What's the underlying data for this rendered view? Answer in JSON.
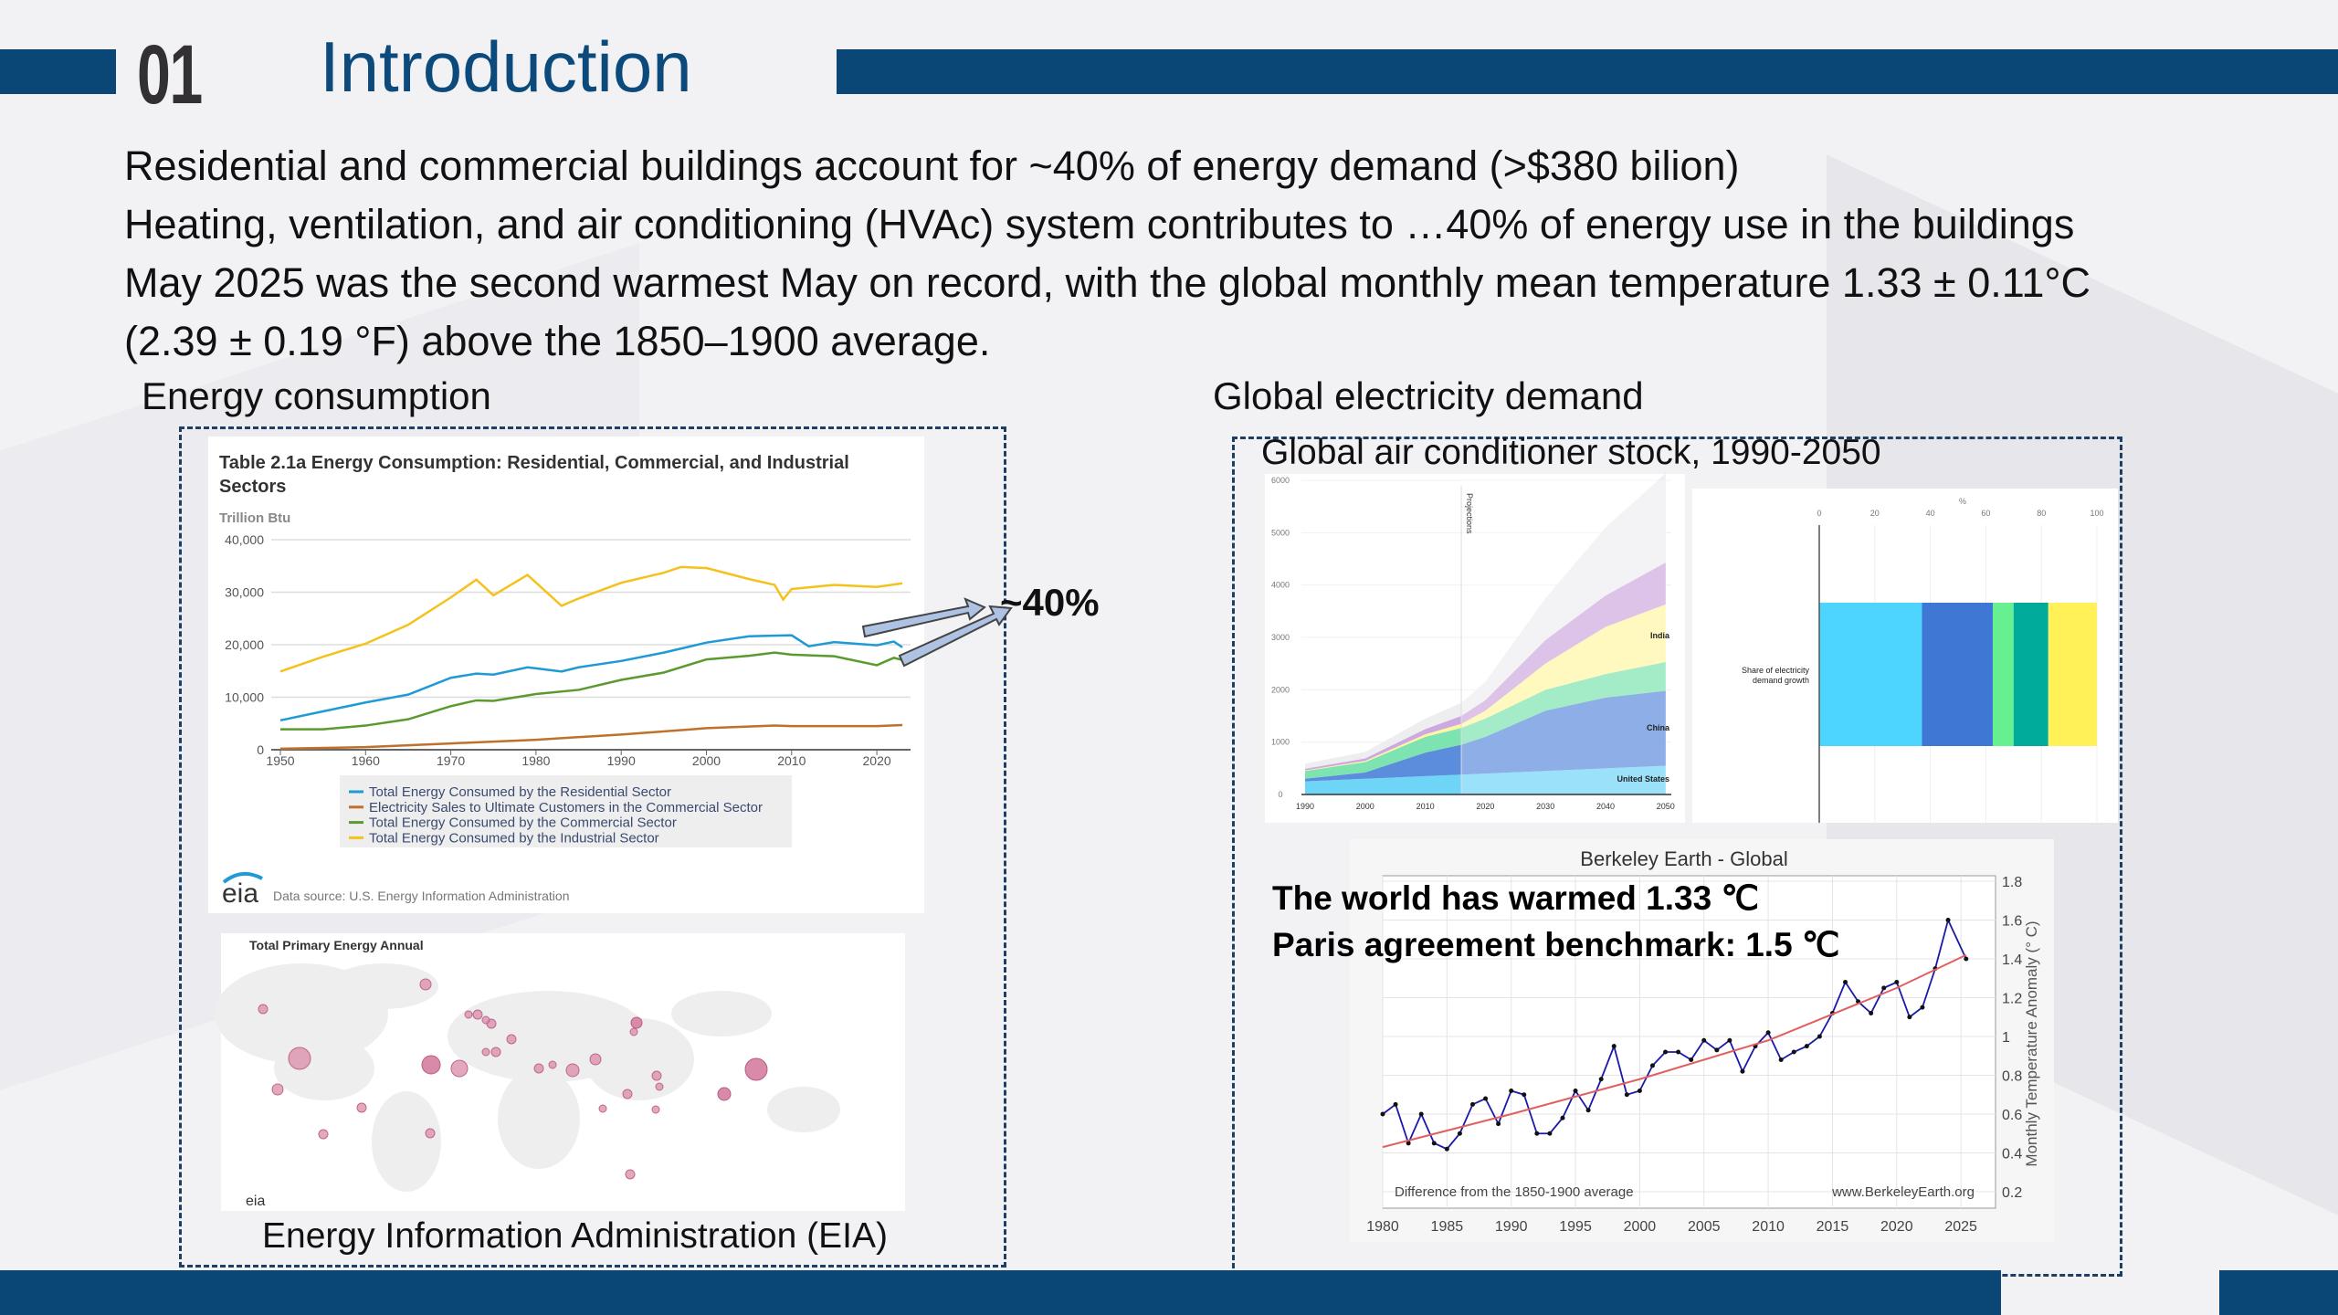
{
  "header": {
    "number": "01",
    "title": "Introduction",
    "bar_color": "#0a4776"
  },
  "body_lines": [
    "Residential and commercial buildings account for ~40% of energy demand (>$380 bilion)",
    "Heating, ventilation, and air conditioning (HVAc) system contributes to …40% of energy use in the buildings",
    "May 2025 was the second warmest May on record, with the global monthly mean temperature 1.33 ± 0.11°C",
    "(2.39 ± 0.19 °F) above the 1850–1900 average."
  ],
  "left_section": {
    "heading": "Energy consumption",
    "caption": "Energy Information Administration (EIA)",
    "callout": "~40%",
    "map_title": "Total Primary Energy Annual",
    "logo_text": "eia"
  },
  "right_section": {
    "heading": "Global electricity demand",
    "subheading": "Global air conditioner stock, 1990-2050",
    "overlay_line1": "The world has warmed 1.33 ℃",
    "overlay_line2": "Paris agreement benchmark: 1.5 ℃"
  },
  "chart_data": [
    {
      "type": "line",
      "title": "Table 2.1a Energy Consumption: Residential, Commercial, and Industrial Sectors",
      "title_line1": "Table 2.1a Energy Consumption: Residential, Commercial, and Industrial",
      "title_line2": "Sectors",
      "ylabel": "Trillion Btu",
      "source": "Data source: U.S. Energy Information Administration",
      "ylim": [
        0,
        40000
      ],
      "yticks": [
        "0",
        "10,000",
        "20,000",
        "30,000",
        "40,000"
      ],
      "xticks": [
        "1950",
        "1960",
        "1970",
        "1980",
        "1990",
        "2000",
        "2010",
        "2020"
      ],
      "grid": true,
      "legend": "bottom",
      "series": [
        {
          "name": "Total Energy Consumed by the Residential Sector",
          "color": "#1f9ad6",
          "x": [
            1950,
            1955,
            1960,
            1965,
            1970,
            1973,
            1975,
            1979,
            1980,
            1983,
            1985,
            1990,
            1995,
            2000,
            2005,
            2010,
            2012,
            2015,
            2020,
            2022,
            2023
          ],
          "y": [
            5600,
            7300,
            9000,
            10500,
            13700,
            14500,
            14300,
            15700,
            15500,
            14900,
            15700,
            16900,
            18500,
            20400,
            21600,
            21800,
            19700,
            20500,
            19900,
            20600,
            19500
          ]
        },
        {
          "name": "Electricity Sales to Ultimate Customers in the Commercial Sector",
          "color": "#c0702a",
          "x": [
            1950,
            1960,
            1970,
            1980,
            1990,
            2000,
            2008,
            2010,
            2020,
            2023
          ],
          "y": [
            200,
            500,
            1200,
            1900,
            2900,
            4100,
            4600,
            4500,
            4500,
            4700
          ]
        },
        {
          "name": "Total Energy Consumed by the Commercial Sector",
          "color": "#5a9a2e",
          "x": [
            1950,
            1955,
            1960,
            1965,
            1970,
            1973,
            1975,
            1980,
            1985,
            1990,
            1995,
            2000,
            2005,
            2008,
            2010,
            2015,
            2020,
            2022,
            2023
          ],
          "y": [
            3900,
            3900,
            4600,
            5800,
            8300,
            9400,
            9300,
            10600,
            11400,
            13300,
            14700,
            17200,
            17900,
            18500,
            18100,
            17800,
            16100,
            17500,
            17100
          ]
        },
        {
          "name": "Total Energy Consumed by the Industrial Sector",
          "color": "#f5c11c",
          "x": [
            1950,
            1955,
            1960,
            1965,
            1970,
            1973,
            1975,
            1979,
            1983,
            1985,
            1990,
            1995,
            1997,
            2000,
            2005,
            2008,
            2009,
            2010,
            2015,
            2020,
            2023
          ],
          "y": [
            14900,
            17700,
            20200,
            23800,
            29000,
            32400,
            29400,
            33300,
            27400,
            28800,
            31800,
            33700,
            34800,
            34600,
            32500,
            31400,
            28600,
            30600,
            31400,
            31000,
            31700
          ]
        }
      ]
    },
    {
      "type": "area",
      "title": "Global air conditioner stock, 1990-2050",
      "ylim": [
        0,
        6000
      ],
      "yticks": [
        "0",
        "1000",
        "2000",
        "3000",
        "4000",
        "5000",
        "6000"
      ],
      "xticks": [
        "1990",
        "2000",
        "2010",
        "2020",
        "2030",
        "2040",
        "2050"
      ],
      "annotation": "Projections",
      "projection_start": 2016,
      "x": [
        1990,
        2000,
        2010,
        2016,
        2020,
        2030,
        2040,
        2050
      ],
      "series": [
        {
          "name": "United States",
          "color": "#5fd0f5",
          "values": [
            250,
            300,
            350,
            380,
            400,
            450,
            500,
            550
          ]
        },
        {
          "name": "China",
          "color": "#4a7fd8",
          "values": [
            50,
            120,
            450,
            570,
            700,
            1150,
            1350,
            1430
          ]
        },
        {
          "color": "#6fe0a8",
          "values": [
            150,
            200,
            300,
            320,
            350,
            400,
            450,
            550
          ]
        },
        {
          "name": "India",
          "color": "#fff59a",
          "values": [
            10,
            20,
            50,
            80,
            150,
            500,
            900,
            1100
          ]
        },
        {
          "color": "#c9a0dc",
          "values": [
            30,
            50,
            100,
            150,
            200,
            450,
            600,
            800
          ]
        },
        {
          "color": "#ececef",
          "values": [
            100,
            120,
            200,
            250,
            350,
            800,
            1300,
            1700
          ]
        }
      ]
    },
    {
      "type": "bar",
      "orientation": "horizontal-stacked",
      "categories": [
        "Share of electricity demand growth"
      ],
      "xlabel": "%",
      "xlim": [
        0,
        100
      ],
      "xticks": [
        "0",
        "20",
        "40",
        "60",
        "80",
        "100"
      ],
      "segments": [
        {
          "value": 37,
          "color": "#4dd4ff"
        },
        {
          "value": 25.5,
          "color": "#3f78d4"
        },
        {
          "value": 7.5,
          "color": "#66f090"
        },
        {
          "value": 12.5,
          "color": "#00ab9c"
        },
        {
          "value": 17.5,
          "color": "#fff157"
        }
      ]
    },
    {
      "type": "line",
      "title": "Berkeley Earth - Global",
      "ylabel": "Monthly Temperature Anomaly (° C)",
      "note_left": "Difference from the 1850-1900 average",
      "note_right": "www.BerkeleyEarth.org",
      "ylim": [
        0.2,
        1.8
      ],
      "xlim": [
        1980,
        2026
      ],
      "yticks": [
        "0.2",
        "0.4",
        "0.6",
        "0.8",
        "1",
        "1.2",
        "1.4",
        "1.6",
        "1.8"
      ],
      "xticks": [
        "1980",
        "1985",
        "1990",
        "1995",
        "2000",
        "2005",
        "2010",
        "2015",
        "2020",
        "2025"
      ],
      "grid": true,
      "series": [
        {
          "color": "#1a1aa8",
          "x": [
            1980,
            1981,
            1982,
            1983,
            1984,
            1985,
            1986,
            1987,
            1988,
            1989,
            1990,
            1991,
            1992,
            1993,
            1994,
            1995,
            1996,
            1997,
            1998,
            1999,
            2000,
            2001,
            2002,
            2003,
            2004,
            2005,
            2006,
            2007,
            2008,
            2009,
            2010,
            2011,
            2012,
            2013,
            2014,
            2015,
            2016,
            2017,
            2018,
            2019,
            2020,
            2021,
            2022,
            2023,
            2024,
            2025.4
          ],
          "y": [
            0.6,
            0.65,
            0.45,
            0.6,
            0.45,
            0.42,
            0.5,
            0.65,
            0.68,
            0.55,
            0.72,
            0.7,
            0.5,
            0.5,
            0.58,
            0.72,
            0.62,
            0.78,
            0.95,
            0.7,
            0.72,
            0.85,
            0.92,
            0.92,
            0.88,
            0.98,
            0.93,
            0.98,
            0.82,
            0.95,
            1.02,
            0.88,
            0.92,
            0.95,
            1.0,
            1.12,
            1.28,
            1.18,
            1.12,
            1.25,
            1.28,
            1.1,
            1.15,
            1.35,
            1.6,
            1.4
          ]
        },
        {
          "color": "#e06060",
          "x": [
            1980,
            1990,
            2000,
            2010,
            2020,
            2025.4
          ],
          "y": [
            0.43,
            0.6,
            0.78,
            0.98,
            1.25,
            1.42
          ]
        }
      ]
    }
  ]
}
